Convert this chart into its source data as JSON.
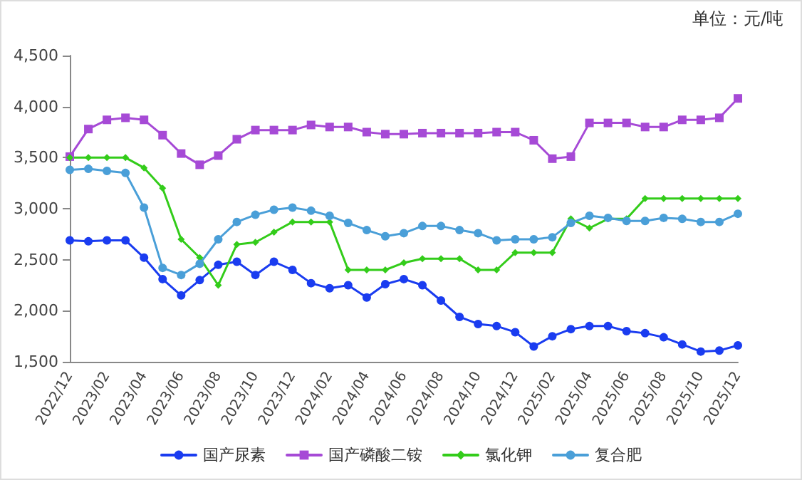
{
  "chart_data": {
    "type": "line",
    "annotations": [
      "单位：元/吨"
    ],
    "categories": [
      "2022/12",
      null,
      "2023/02",
      null,
      "2023/04",
      null,
      "2023/06",
      null,
      "2023/08",
      null,
      "2023/10",
      null,
      "2023/12",
      null,
      "2024/02",
      null,
      "2024/04",
      null,
      "2024/06",
      null,
      "2024/08",
      null,
      "2024/10",
      null,
      "2024/12",
      null,
      "2025/02",
      null,
      "2025/04",
      null,
      "2025/06",
      null,
      "2025/08",
      null,
      "2025/10",
      null,
      "2025/12"
    ],
    "series": [
      {
        "name": "国产尿素",
        "color": "#1a3cf0",
        "marker": "circle",
        "values": [
          2690,
          2680,
          2690,
          2690,
          2520,
          2310,
          2150,
          2300,
          2450,
          2480,
          2350,
          2480,
          2400,
          2270,
          2220,
          2250,
          2130,
          2260,
          2310,
          2250,
          2100,
          1940,
          1870,
          1850,
          1790,
          1650,
          1750,
          1820,
          1850,
          1850,
          1800,
          1780,
          1740,
          1670,
          1600,
          1610,
          1660
        ]
      },
      {
        "name": "国产磷酸二铵",
        "color": "#a64ad6",
        "marker": "square",
        "values": [
          3510,
          3780,
          3870,
          3890,
          3870,
          3720,
          3540,
          3430,
          3520,
          3680,
          3770,
          3770,
          3770,
          3820,
          3800,
          3800,
          3750,
          3730,
          3730,
          3740,
          3740,
          3740,
          3740,
          3750,
          3750,
          3670,
          3490,
          3510,
          3840,
          3840,
          3840,
          3800,
          3800,
          3870,
          3870,
          3890,
          4080
        ]
      },
      {
        "name": "氯化钾",
        "color": "#33cc1a",
        "marker": "diamond",
        "values": [
          3500,
          3500,
          3500,
          3500,
          3400,
          3200,
          2700,
          2520,
          2250,
          2650,
          2670,
          2770,
          2870,
          2870,
          2870,
          2400,
          2400,
          2400,
          2470,
          2510,
          2510,
          2510,
          2400,
          2400,
          2570,
          2570,
          2570,
          2900,
          2810,
          2900,
          2900,
          3100,
          3100,
          3100,
          3100,
          3100,
          3100
        ]
      },
      {
        "name": "复合肥",
        "color": "#4a9fd8",
        "marker": "circle",
        "values": [
          3380,
          3390,
          3370,
          3350,
          3010,
          2420,
          2350,
          2460,
          2700,
          2870,
          2940,
          2990,
          3010,
          2980,
          2930,
          2860,
          2790,
          2730,
          2760,
          2830,
          2830,
          2790,
          2760,
          2690,
          2700,
          2700,
          2720,
          2860,
          2930,
          2910,
          2880,
          2880,
          2910,
          2900,
          2870,
          2870,
          2950
        ]
      }
    ],
    "ylim": [
      1500,
      4500
    ],
    "yticks": [
      {
        "value": 1500,
        "label": "1,500"
      },
      {
        "value": 2000,
        "label": "2,000"
      },
      {
        "value": 2500,
        "label": "2,500"
      },
      {
        "value": 3000,
        "label": "3,000"
      },
      {
        "value": 3500,
        "label": "3,500"
      },
      {
        "value": 4000,
        "label": "4,000"
      },
      {
        "value": 4500,
        "label": "4,500"
      }
    ],
    "grid": false,
    "legend": "bottom",
    "line_style": "solid"
  }
}
